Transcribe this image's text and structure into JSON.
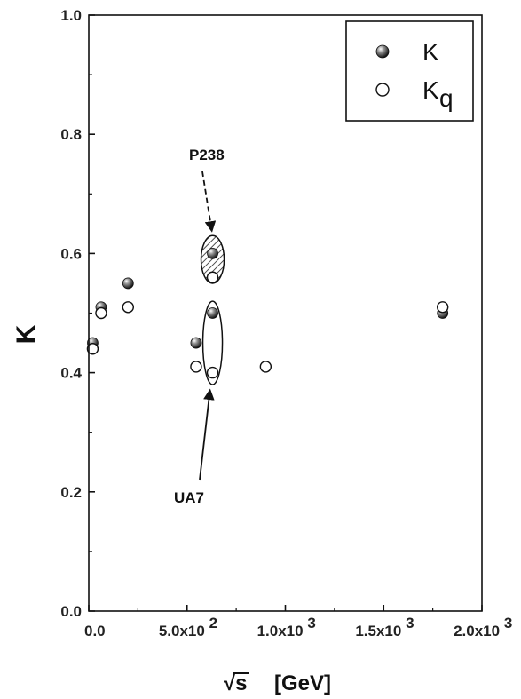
{
  "chart_data": {
    "type": "scatter",
    "xlabel": "[GeV]",
    "xlabel_sqrt_symbol": "√s",
    "ylabel": "K",
    "xlim": [
      0,
      2000
    ],
    "ylim": [
      0.0,
      1.0
    ],
    "x_ticks": [
      0,
      500,
      1000,
      1500,
      2000
    ],
    "x_tick_labels": [
      "0.0",
      "5.0x10",
      "1.0x10",
      "1.5x10",
      "2.0x10"
    ],
    "x_tick_exponents": [
      "",
      "2",
      "3",
      "3",
      "3"
    ],
    "y_ticks": [
      0.0,
      0.2,
      0.4,
      0.6,
      0.8,
      1.0
    ],
    "y_tick_labels": [
      "0.0",
      "0.2",
      "0.4",
      "0.6",
      "0.8",
      "1.0"
    ],
    "grid": false,
    "legend_position": "top-right",
    "series": [
      {
        "name": "K",
        "marker": "filled-circle",
        "points": [
          {
            "x": 20,
            "y": 0.45
          },
          {
            "x": 63,
            "y": 0.51
          },
          {
            "x": 200,
            "y": 0.55
          },
          {
            "x": 546,
            "y": 0.45
          },
          {
            "x": 630,
            "y": 0.5
          },
          {
            "x": 630,
            "y": 0.6
          },
          {
            "x": 1800,
            "y": 0.5
          }
        ]
      },
      {
        "name": "K",
        "name_subscript": "q",
        "marker": "open-circle",
        "points": [
          {
            "x": 20,
            "y": 0.44
          },
          {
            "x": 63,
            "y": 0.5
          },
          {
            "x": 200,
            "y": 0.51
          },
          {
            "x": 546,
            "y": 0.41
          },
          {
            "x": 630,
            "y": 0.4
          },
          {
            "x": 630,
            "y": 0.56
          },
          {
            "x": 900,
            "y": 0.41
          },
          {
            "x": 1800,
            "y": 0.51
          }
        ]
      }
    ],
    "annotations": [
      {
        "text": "P238",
        "point_x": 630,
        "point_y": 0.595,
        "style": "dashed-arrow",
        "region": "hatched-ellipse",
        "region_y": [
          0.55,
          0.63
        ]
      },
      {
        "text": "UA7",
        "point_x": 630,
        "point_y": 0.455,
        "style": "solid-arrow",
        "region": "open-ellipse",
        "region_y": [
          0.38,
          0.52
        ]
      }
    ]
  }
}
